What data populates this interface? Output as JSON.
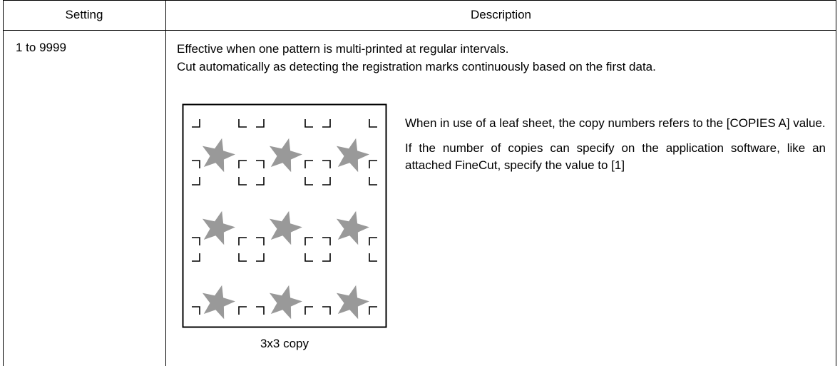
{
  "header": {
    "setting": "Setting",
    "description": "Description"
  },
  "rows": [
    {
      "setting": "1 to 9999",
      "description": [
        "Effective when one pattern is multi-printed at regular intervals.",
        "Cut automatically as detecting the registration marks continuously based on the first data."
      ],
      "figure_caption": "3x3 copy",
      "notes": [
        "When in use of a leaf sheet, the copy numbers refers to the [COPIES A] value.",
        "If the number of copies can specify on the application software, like an attached FineCut, specify the value to [1]"
      ]
    }
  ]
}
